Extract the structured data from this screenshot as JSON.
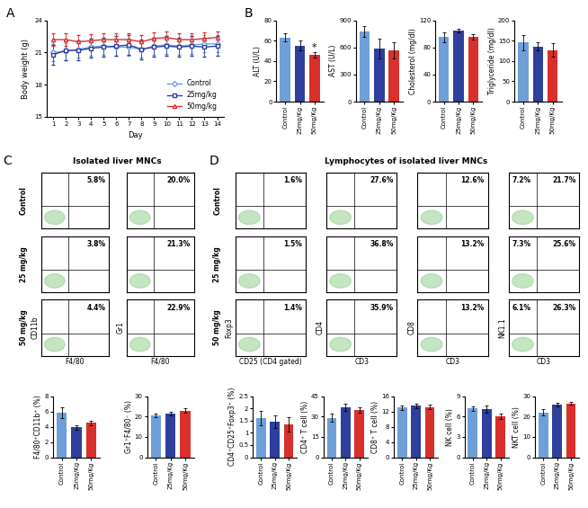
{
  "panels": [
    {
      "letter": "A"
    },
    {
      "letter": "B"
    },
    {
      "letter": "C",
      "title": "Isolated liver MNCs"
    },
    {
      "letter": "D",
      "title": "Lymphocytes of isolated liver MNCs"
    }
  ],
  "chart_data": [
    {
      "panel": "A",
      "type": "line",
      "x_label": "Day",
      "y_label": "Body weight (g)",
      "x": [
        1,
        2,
        3,
        4,
        5,
        6,
        7,
        8,
        9,
        10,
        11,
        12,
        13,
        14
      ],
      "xlim": [
        0.5,
        14.5
      ],
      "xticks": [
        1,
        2,
        3,
        4,
        5,
        6,
        7,
        8,
        9,
        10,
        11,
        12,
        13,
        14
      ],
      "ylim": [
        15,
        24
      ],
      "yticks": [
        15,
        18,
        21,
        24
      ],
      "legend": "lower right",
      "series": [
        {
          "name": "Control",
          "color": "#6f9fd8",
          "marker": "diamond",
          "values": [
            21.0,
            21.1,
            21.3,
            21.5,
            21.6,
            21.5,
            21.5,
            21.3,
            21.6,
            21.7,
            21.6,
            21.7,
            21.8,
            21.8
          ],
          "errors": [
            0.8,
            0.8,
            0.8,
            0.8,
            0.8,
            0.8,
            0.8,
            0.8,
            0.8,
            0.8,
            0.8,
            0.8,
            0.8,
            0.8
          ]
        },
        {
          "name": "25mg/kg",
          "color": "#2e3f9e",
          "marker": "square",
          "values": [
            20.8,
            21.2,
            21.2,
            21.4,
            21.5,
            21.6,
            21.7,
            21.3,
            21.5,
            21.6,
            21.5,
            21.6,
            21.5,
            21.6
          ],
          "errors": [
            0.9,
            0.9,
            0.9,
            0.9,
            0.9,
            0.9,
            0.9,
            0.9,
            0.9,
            0.9,
            0.9,
            0.9,
            0.9,
            0.9
          ]
        },
        {
          "name": "50mg/kg",
          "color": "#d9302c",
          "marker": "triangle",
          "values": [
            22.2,
            22.2,
            22.0,
            22.1,
            22.2,
            22.2,
            22.2,
            22.0,
            22.3,
            22.4,
            22.2,
            22.2,
            22.3,
            22.4
          ],
          "errors": [
            0.6,
            0.6,
            0.6,
            0.6,
            0.6,
            0.6,
            0.6,
            0.6,
            0.6,
            0.6,
            0.6,
            0.6,
            0.6,
            0.6
          ]
        }
      ]
    },
    {
      "panel": "B",
      "type": "bar",
      "y_label": "ALT (U/L)",
      "categories": [
        "Control",
        "25mg/Kg",
        "50mg/Kg"
      ],
      "colors": [
        "#6f9fd8",
        "#2e3f9e",
        "#d9302c"
      ],
      "values": [
        63,
        55,
        46
      ],
      "errors": [
        4,
        5,
        3
      ],
      "ylim": [
        0,
        80
      ],
      "yticks": [
        0,
        20,
        40,
        60,
        80
      ],
      "annotations": [
        {
          "category": "50mg/Kg",
          "text": "*"
        }
      ]
    },
    {
      "panel": "B",
      "type": "bar",
      "y_label": "AST (U/L)",
      "categories": [
        "Control",
        "25mg/Kg",
        "50mg/Kg"
      ],
      "colors": [
        "#6f9fd8",
        "#2e3f9e",
        "#d9302c"
      ],
      "values": [
        780,
        590,
        570
      ],
      "errors": [
        60,
        110,
        90
      ],
      "ylim": [
        0,
        900
      ],
      "yticks": [
        0,
        300,
        600,
        900
      ]
    },
    {
      "panel": "B",
      "type": "bar",
      "y_label": "Cholesterol (mg/dl)",
      "categories": [
        "Control",
        "25mg/Kg",
        "50mg/Kg"
      ],
      "colors": [
        "#6f9fd8",
        "#2e3f9e",
        "#d9302c"
      ],
      "values": [
        95,
        105,
        95
      ],
      "errors": [
        7,
        3,
        4
      ],
      "ylim": [
        0,
        120
      ],
      "yticks": [
        0,
        40,
        80,
        120
      ]
    },
    {
      "panel": "B",
      "type": "bar",
      "y_label": "Triglyceride (mg/dl)",
      "categories": [
        "Control",
        "25mg/Kg",
        "50mg/Kg"
      ],
      "colors": [
        "#6f9fd8",
        "#2e3f9e",
        "#d9302c"
      ],
      "values": [
        145,
        135,
        127
      ],
      "errors": [
        18,
        10,
        17
      ],
      "ylim": [
        0,
        200
      ],
      "yticks": [
        0,
        50,
        100,
        150,
        200
      ]
    },
    {
      "panel": "C",
      "type": "flow_cytometry",
      "row_labels": [
        "Control",
        "25 mg/kg",
        "50 mg/kg"
      ],
      "tick_labels": false,
      "columns": [
        {
          "x_label": "F4/80",
          "y_label": "CD11b",
          "rows": [
            {
              "values": [
                5.8
              ],
              "value_labels": [
                "5.8%"
              ]
            },
            {
              "values": [
                3.8
              ],
              "value_labels": [
                "3.8%"
              ]
            },
            {
              "values": [
                4.4
              ],
              "value_labels": [
                "4.4%"
              ]
            }
          ]
        },
        {
          "x_label": "F4/80",
          "y_label": "Gr1",
          "rows": [
            {
              "values": [
                20.0
              ],
              "value_labels": [
                "20.0%"
              ]
            },
            {
              "values": [
                21.3
              ],
              "value_labels": [
                "21.3%"
              ]
            },
            {
              "values": [
                22.9
              ],
              "value_labels": [
                "22.9%"
              ]
            }
          ]
        }
      ]
    },
    {
      "panel": "C",
      "type": "bar",
      "y_label": "F4/80⁺CD11b⁺ (%)",
      "categories": [
        "Control",
        "25mg/Kg",
        "50mg/Kg"
      ],
      "colors": [
        "#6f9fd8",
        "#2e3f9e",
        "#d9302c"
      ],
      "values": [
        5.8,
        3.9,
        4.5
      ],
      "errors": [
        0.7,
        0.3,
        0.3
      ],
      "ylim": [
        0,
        8
      ],
      "yticks": [
        0,
        2,
        4,
        6,
        8
      ]
    },
    {
      "panel": "C",
      "type": "bar",
      "y_label": "Gr1⁺F4/80⁻ (%)",
      "categories": [
        "Control",
        "25mg/Kg",
        "50mg/Kg"
      ],
      "colors": [
        "#6f9fd8",
        "#2e3f9e",
        "#d9302c"
      ],
      "values": [
        20.5,
        21.5,
        23.0
      ],
      "errors": [
        1.0,
        1.0,
        1.2
      ],
      "ylim": [
        0,
        30
      ],
      "yticks": [
        0,
        10,
        20,
        30
      ]
    },
    {
      "panel": "D",
      "type": "flow_cytometry",
      "row_labels": [
        "Control",
        "25 mg/kg",
        "50 mg/kg"
      ],
      "tick_labels": false,
      "columns": [
        {
          "x_label": "CD25 (CD4 gated)",
          "y_label": "Foxp3",
          "rows": [
            {
              "values": [
                1.6
              ],
              "value_labels": [
                "1.6%"
              ]
            },
            {
              "values": [
                1.5
              ],
              "value_labels": [
                "1.5%"
              ]
            },
            {
              "values": [
                1.4
              ],
              "value_labels": [
                "1.4%"
              ]
            }
          ]
        },
        {
          "x_label": "CD3",
          "y_label": "CD4",
          "rows": [
            {
              "values": [
                27.6
              ],
              "value_labels": [
                "27.6%"
              ]
            },
            {
              "values": [
                36.8
              ],
              "value_labels": [
                "36.8%"
              ]
            },
            {
              "values": [
                35.9
              ],
              "value_labels": [
                "35.9%"
              ]
            }
          ]
        },
        {
          "x_label": "CD3",
          "y_label": "CD8",
          "rows": [
            {
              "values": [
                12.6
              ],
              "value_labels": [
                "12.6%"
              ]
            },
            {
              "values": [
                13.2
              ],
              "value_labels": [
                "13.2%"
              ]
            },
            {
              "values": [
                13.2
              ],
              "value_labels": [
                "13.2%"
              ]
            }
          ]
        },
        {
          "x_label": "CD3",
          "y_label": "NK1.1",
          "rows": [
            {
              "values": [
                7.2,
                21.7
              ],
              "value_labels": [
                "7.2%",
                "21.7%"
              ]
            },
            {
              "values": [
                7.3,
                25.6
              ],
              "value_labels": [
                "7.3%",
                "25.6%"
              ]
            },
            {
              "values": [
                6.1,
                26.3
              ],
              "value_labels": [
                "6.1%",
                "26.3%"
              ]
            }
          ]
        }
      ]
    },
    {
      "panel": "D",
      "type": "bar",
      "y_label": "CD4⁺CD25⁺Foxp3⁺ (%)",
      "categories": [
        "Control",
        "25mg/Kg",
        "50mg/Kg"
      ],
      "colors": [
        "#6f9fd8",
        "#2e3f9e",
        "#d9302c"
      ],
      "values": [
        1.6,
        1.45,
        1.35
      ],
      "errors": [
        0.3,
        0.25,
        0.3
      ],
      "ylim": [
        0,
        2.5
      ],
      "yticks": [
        0,
        0.5,
        1,
        1.5,
        2,
        2.5
      ]
    },
    {
      "panel": "D",
      "type": "bar",
      "y_label": "CD4⁺ T cell (%)",
      "categories": [
        "Control",
        "25mg/Kg",
        "50mg/Kg"
      ],
      "colors": [
        "#6f9fd8",
        "#2e3f9e",
        "#d9302c"
      ],
      "values": [
        29,
        37,
        35
      ],
      "errors": [
        3,
        2.5,
        2
      ],
      "ylim": [
        0,
        45
      ],
      "yticks": [
        0,
        15,
        30,
        45
      ]
    },
    {
      "panel": "D",
      "type": "bar",
      "y_label": "CD8⁺ T cell (%)",
      "categories": [
        "Control",
        "25mg/Kg",
        "50mg/Kg"
      ],
      "colors": [
        "#6f9fd8",
        "#2e3f9e",
        "#d9302c"
      ],
      "values": [
        13.0,
        13.5,
        13.2
      ],
      "errors": [
        0.6,
        0.6,
        0.5
      ],
      "ylim": [
        0,
        16
      ],
      "yticks": [
        0,
        4,
        8,
        12,
        16
      ]
    },
    {
      "panel": "D",
      "type": "bar",
      "y_label": "NK cell (%)",
      "categories": [
        "Control",
        "25mg/Kg",
        "50mg/Kg"
      ],
      "colors": [
        "#6f9fd8",
        "#2e3f9e",
        "#d9302c"
      ],
      "values": [
        7.2,
        7.1,
        6.1
      ],
      "errors": [
        0.3,
        0.5,
        0.4
      ],
      "ylim": [
        0,
        9
      ],
      "yticks": [
        0,
        3,
        6,
        9
      ]
    },
    {
      "panel": "D",
      "type": "bar",
      "y_label": "NKT cell (%)",
      "categories": [
        "Control",
        "25mg/Kg",
        "50mg/Kg"
      ],
      "colors": [
        "#6f9fd8",
        "#2e3f9e",
        "#d9302c"
      ],
      "values": [
        22.0,
        25.8,
        26.5
      ],
      "errors": [
        1.5,
        0.8,
        0.8
      ],
      "ylim": [
        0,
        30
      ],
      "yticks": [
        0,
        10,
        20,
        30
      ]
    }
  ]
}
